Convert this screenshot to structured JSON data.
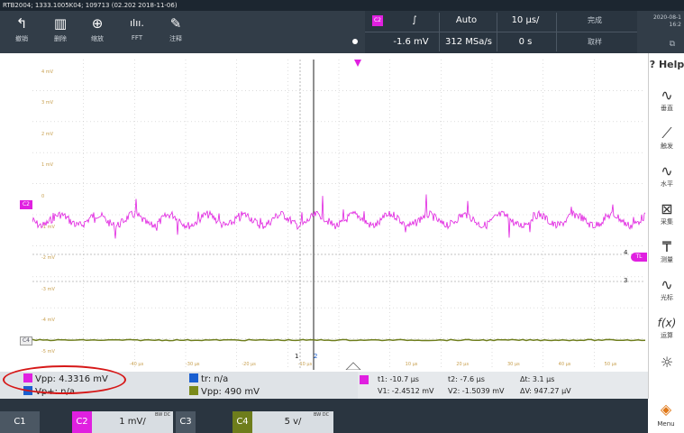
{
  "titlebar": {
    "text": "RTB2004; 1333.1005K04; 109713 (02.202 2018-11-06)"
  },
  "toolbar": {
    "undo": {
      "icon": "undo-icon",
      "label": "撤销"
    },
    "delete": {
      "icon": "trash-icon",
      "label": "删除"
    },
    "zoom": {
      "icon": "zoom-icon",
      "label": "缩放"
    },
    "fft": {
      "icon": "fft-icon",
      "label": "FFT"
    },
    "annotate": {
      "icon": "pencil-icon",
      "label": "注释"
    }
  },
  "trigger": {
    "source": "C2",
    "slope": "∫",
    "mode": "Auto",
    "timebase": "10 µs/",
    "state": "完成",
    "level": "-1.6 mV",
    "sample_rate": "312 MSa/s",
    "position": "0 s",
    "acq": "取样"
  },
  "datetime": {
    "date": "2020-08-1",
    "time": "16:2"
  },
  "plot": {
    "y_labels": [
      "4 mV",
      "3 mV",
      "2 mV",
      "1 mV",
      "0",
      "-1 mV",
      "-2 mV",
      "-3 mV",
      "-4 mV",
      "-5 mV"
    ],
    "x_labels": [
      "-40 µs",
      "-30 µs",
      "-20 µs",
      "-10 µs",
      "10 µs",
      "20 µs",
      "30 µs",
      "40 µs",
      "50 µs"
    ],
    "ch2_tag": "C2",
    "c4_tag": "C4",
    "tl_tag": "TL",
    "marker_1": "1",
    "marker_2": "2",
    "right_marker_1": "4",
    "right_marker_3": "3"
  },
  "sidebar": {
    "help": "? Help",
    "items": [
      {
        "icon": "vertical-icon",
        "label": "垂直"
      },
      {
        "icon": "trigger-icon",
        "label": "触发"
      },
      {
        "icon": "horizontal-icon",
        "label": "水平"
      },
      {
        "icon": "acquire-icon",
        "label": "采集"
      },
      {
        "icon": "measure-icon",
        "label": "测量"
      },
      {
        "icon": "cursor-icon",
        "label": "光标"
      },
      {
        "icon": "math-icon",
        "label": "运算"
      },
      {
        "icon": "apps-icon",
        "label": ""
      }
    ]
  },
  "measurements": {
    "m1": "Vpp: 4.3316 mV",
    "m2": "Vp+: n/a",
    "m3": "tr: n/a",
    "m4": "Vpp: 490 mV"
  },
  "cursors": {
    "t1": "t1: -10.7 µs",
    "t2": "t2: -7.6 µs",
    "dt": "Δt: 3.1 µs",
    "v1": "V1: -2.4512 mV",
    "v2": "V2: -1.5039 mV",
    "dv": "ΔV: 947.27 µV"
  },
  "channels": {
    "c1": "C1",
    "c2": "C2",
    "c2_scale": "1 mV/",
    "c2_coupling": "BW DC",
    "c3": "C3",
    "c4": "C4",
    "c4_scale": "5 v/",
    "c4_coupling": "BW DC",
    "menu": "Menu"
  },
  "colors": {
    "ch2": "#e020e0",
    "ch4": "#6e7d1c",
    "ch1": "#1a5fd0",
    "highlight": "#d61818"
  }
}
